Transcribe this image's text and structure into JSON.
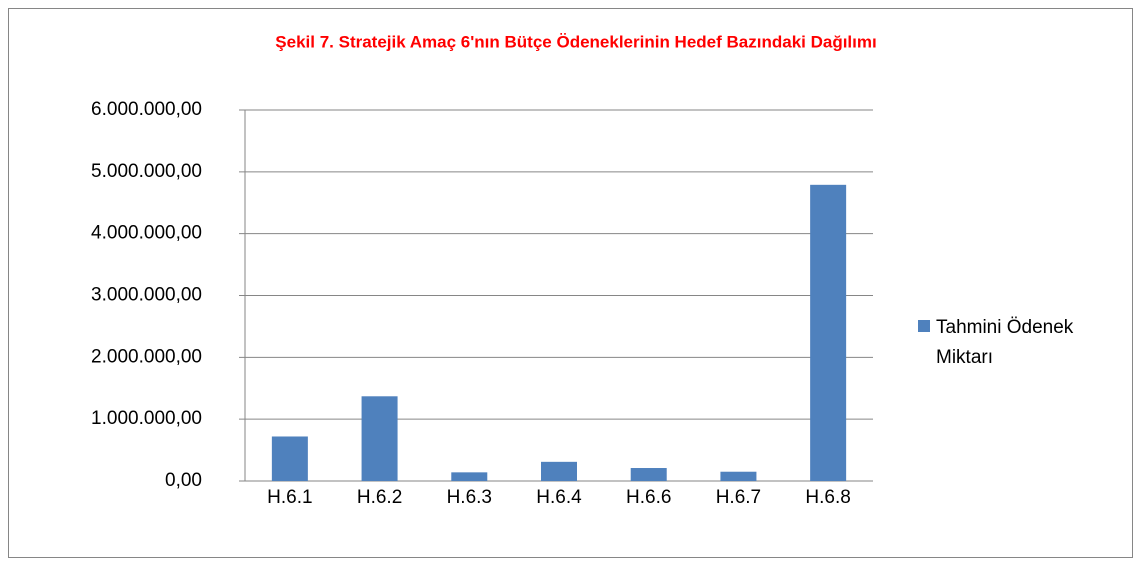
{
  "chart_data": {
    "type": "bar",
    "title": "Şekil 7. Stratejik Amaç 6'nın Bütçe Ödeneklerinin  Hedef Bazındaki Dağılımı",
    "categories": [
      "H.6.1",
      "H.6.2",
      "H.6.3",
      "H.6.4",
      "H.6.6",
      "H.6.7",
      "H.6.8"
    ],
    "series": [
      {
        "name": "Tahmini Ödenek Miktarı",
        "color": "#4f81bd",
        "values": [
          720000,
          1370000,
          140000,
          310000,
          210000,
          150000,
          4790000
        ]
      }
    ],
    "ylim": [
      0,
      6000000
    ],
    "yticks": [
      {
        "value": 0,
        "label": "0,00"
      },
      {
        "value": 1000000,
        "label": "1.000.000,00"
      },
      {
        "value": 2000000,
        "label": "2.000.000,00"
      },
      {
        "value": 3000000,
        "label": "3.000.000,00"
      },
      {
        "value": 4000000,
        "label": "4.000.000,00"
      },
      {
        "value": 5000000,
        "label": "5.000.000,00"
      },
      {
        "value": 6000000,
        "label": "6.000.000,00"
      }
    ],
    "grid": true,
    "legend": "right"
  }
}
